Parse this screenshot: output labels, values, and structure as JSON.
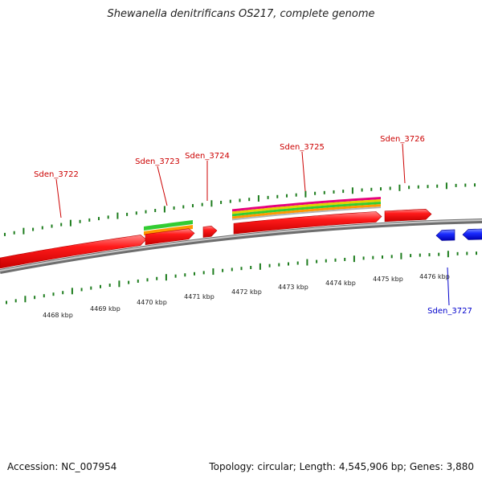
{
  "header": {
    "title": "Shewanella denitrificans OS217, complete genome"
  },
  "footer": {
    "accession": "Accession: NC_007954",
    "summary": "Topology: circular; Length: 4,545,906 bp; Genes: 3,880"
  },
  "colors": {
    "backbone": "#8c8c8c",
    "forward_gene": "#ff0000",
    "reverse_gene": "#0000ff",
    "ticks": "#1e7d1e",
    "label_forward": "#cc0000",
    "label_reverse": "#0000cc",
    "feature_green": "#33cc33",
    "feature_orange": "#ff9900",
    "feature_magenta": "#e6007e",
    "feature_yellow": "#e6d200",
    "feature_gray": "#b4b4b4"
  },
  "axis": {
    "unit": "kbp",
    "tick_labels": [
      "4468 kbp",
      "4469 kbp",
      "4470 kbp",
      "4471 kbp",
      "4472 kbp",
      "4473 kbp",
      "4474 kbp",
      "4475 kbp",
      "4476 kbp"
    ]
  },
  "genes": [
    {
      "name": "Sden_3722",
      "strand": "forward"
    },
    {
      "name": "Sden_3723",
      "strand": "forward"
    },
    {
      "name": "Sden_3724",
      "strand": "forward"
    },
    {
      "name": "Sden_3725",
      "strand": "forward"
    },
    {
      "name": "Sden_3726",
      "strand": "forward"
    },
    {
      "name": "Sden_3727",
      "strand": "reverse"
    }
  ]
}
